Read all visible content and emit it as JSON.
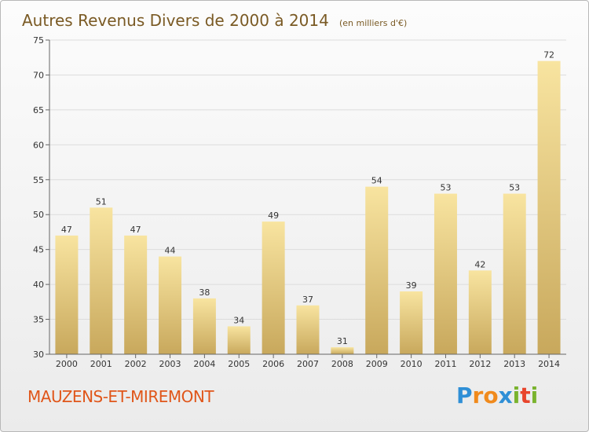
{
  "title": {
    "main": "Autres Revenus Divers de 2000 à 2014",
    "unit": "(en milliers d'€)"
  },
  "commune": "MAUZENS-ET-MIREMONT",
  "logo": {
    "letters": [
      "P",
      "r",
      "o",
      "x",
      "i",
      "t",
      "i"
    ],
    "colors": [
      "#2f8fd6",
      "#f08a1c",
      "#f08a1c",
      "#2f8fd6",
      "#7ab32e",
      "#e8452c",
      "#7ab32e"
    ]
  },
  "chart_data": {
    "type": "bar",
    "categories": [
      "2000",
      "2001",
      "2002",
      "2003",
      "2004",
      "2005",
      "2006",
      "2007",
      "2008",
      "2009",
      "2010",
      "2011",
      "2012",
      "2013",
      "2014"
    ],
    "values": [
      47,
      51,
      47,
      44,
      38,
      34,
      49,
      37,
      31,
      54,
      39,
      53,
      42,
      53,
      72
    ],
    "ylim": [
      30,
      75
    ],
    "yticks": [
      30,
      35,
      40,
      45,
      50,
      55,
      60,
      65,
      70,
      75
    ],
    "grid": true,
    "bar_color_light": "#f8e4a0",
    "bar_color_dark": "#c8a85c"
  }
}
